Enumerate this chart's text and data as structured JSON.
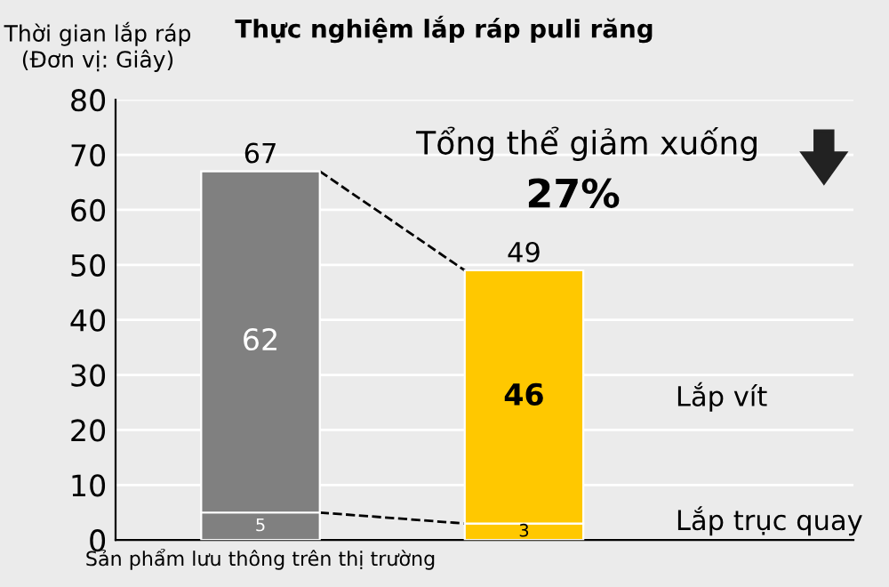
{
  "chart_data": {
    "type": "bar",
    "title": "Thực nghiệm lắp ráp puli răng",
    "ylabel": "Thời gian lắp ráp\n(Đơn vị: Giây)",
    "categories": [
      "Sản phẩm lưu thông trên thị trường",
      null
    ],
    "stacked": true,
    "series": [
      {
        "name": "Lắp trục quay",
        "colors": [
          "#808080",
          "#ffc800"
        ],
        "values": [
          5,
          3
        ]
      },
      {
        "name": "Lắp vít",
        "colors": [
          "#808080",
          "#ffc800"
        ],
        "values": [
          62,
          46
        ]
      }
    ],
    "data_labels": true,
    "totals": [
      "67",
      "49"
    ],
    "ylim": [
      0,
      80
    ],
    "yticks": [
      0,
      10,
      20,
      30,
      40,
      50,
      60,
      70,
      80
    ],
    "grid": "y",
    "annotations": [
      "Tổng thể giảm xuống",
      "27%"
    ]
  }
}
